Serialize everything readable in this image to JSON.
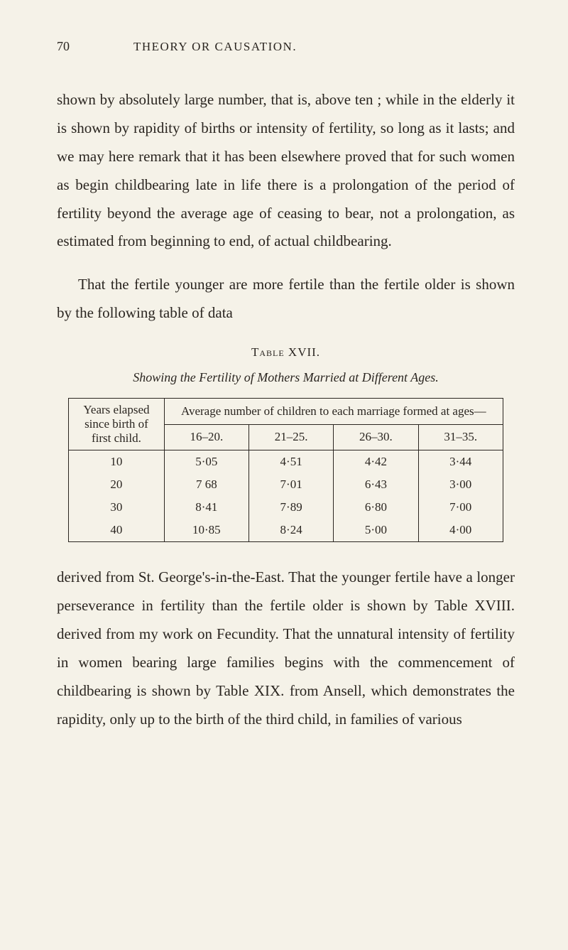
{
  "page_number": "70",
  "running_title": "THEORY OR CAUSATION.",
  "paragraph1": "shown by absolutely large number, that is, above ten ; while in the elderly it is shown by rapidity of births or intensity of fertility, so long as it lasts; and we may here remark that it has been elsewhere proved that for such women as begin childbearing late in life there is a prolongation of the period of fertility beyond the average age of ceasing to bear, not a prolongation, as estimated from beginning to end, of actual childbearing.",
  "paragraph2": "That the fertile younger are more fertile than the fertile older is shown by the following table of data",
  "table": {
    "label": "Table XVII.",
    "caption": "Showing the Fertility of Mothers Married at Different Ages.",
    "stub_header": "Years elapsed since birth of first child.",
    "span_header": "Average number of children to each marriage formed at ages—",
    "columns": [
      "16–20.",
      "21–25.",
      "26–30.",
      "31–35."
    ],
    "rows": [
      {
        "stub": "10",
        "cells": [
          "5·05",
          "4·51",
          "4·42",
          "3·44"
        ]
      },
      {
        "stub": "20",
        "cells": [
          "7 68",
          "7·01",
          "6·43",
          "3·00"
        ]
      },
      {
        "stub": "30",
        "cells": [
          "8·41",
          "7·89",
          "6·80",
          "7·00"
        ]
      },
      {
        "stub": "40",
        "cells": [
          "10·85",
          "8·24",
          "5·00",
          "4·00"
        ]
      }
    ]
  },
  "paragraph3": "derived from St. George's-in-the-East. That the younger fertile have a longer perseverance in fertility than the fertile older is shown by Table XVIII. derived from my work on Fecundity. That the unnatural intensity of fertility in women bearing large families begins with the commencement of childbearing is shown by Table XIX. from Ansell, which demonstrates the rapidity, only up to the birth of the third child, in families of various"
}
